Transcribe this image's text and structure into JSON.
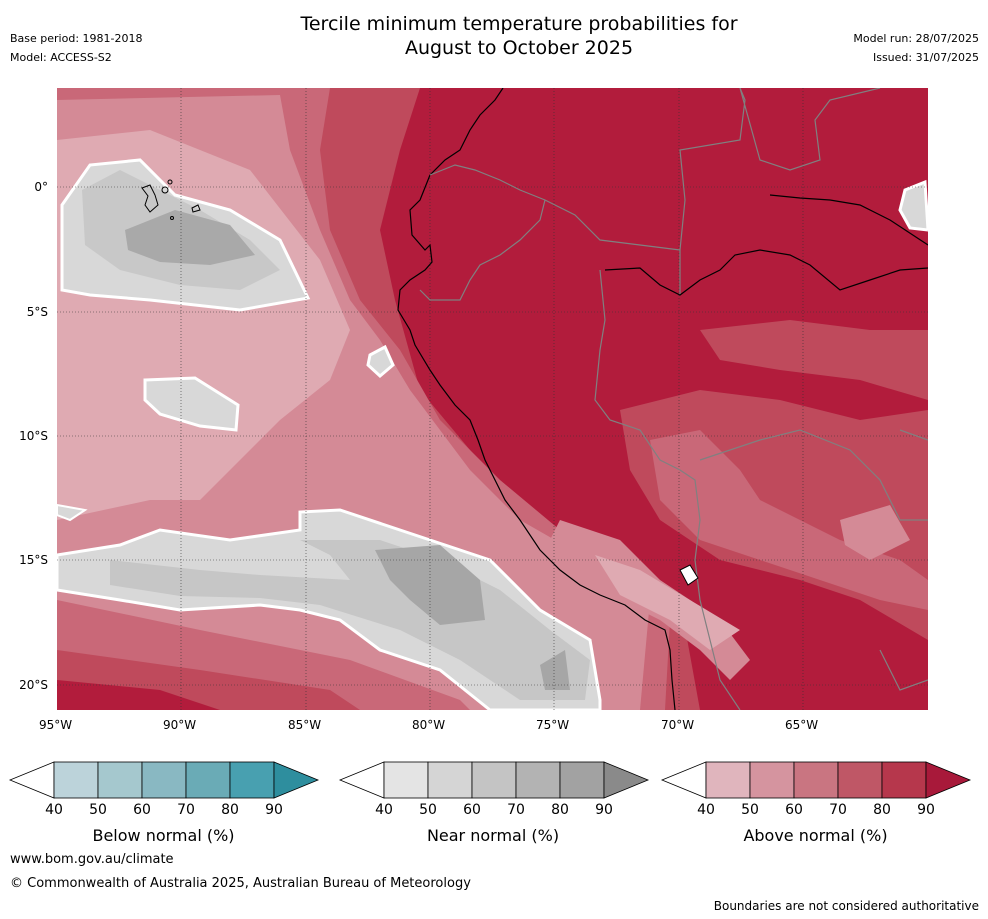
{
  "header": {
    "title_line1": "Tercile minimum temperature probabilities for",
    "title_line2": "August to October 2025",
    "base_period": "Base period: 1981-2018",
    "model": "Model: ACCESS-S2",
    "model_run": "Model run: 28/07/2025",
    "issued": "Issued: 31/07/2025"
  },
  "map": {
    "lat_labels": [
      "0°",
      "5°S",
      "10°S",
      "15°S",
      "20°S"
    ],
    "lon_labels": [
      "95°W",
      "90°W",
      "85°W",
      "80°W",
      "75°W",
      "70°W",
      "65°W"
    ]
  },
  "colorbars": [
    {
      "label": "Below normal (%)",
      "ticks": [
        "40",
        "50",
        "60",
        "70",
        "80",
        "90"
      ],
      "colors": [
        "#bcd3da",
        "#a5c8ce",
        "#89b8c2",
        "#6aabb6",
        "#48a0b0",
        "#2e8e9e"
      ]
    },
    {
      "label": "Near normal (%)",
      "ticks": [
        "40",
        "50",
        "60",
        "70",
        "80",
        "90"
      ],
      "colors": [
        "#e4e4e4",
        "#d5d5d5",
        "#c4c4c4",
        "#b3b3b3",
        "#a2a2a2",
        "#8a8a8a"
      ]
    },
    {
      "label": "Above normal (%)",
      "ticks": [
        "40",
        "50",
        "60",
        "70",
        "80",
        "90"
      ],
      "colors": [
        "#e0b5bd",
        "#d5949f",
        "#c97581",
        "#bf5766",
        "#b6374c",
        "#a8193a"
      ]
    }
  ],
  "footer": {
    "website": "www.bom.gov.au/climate",
    "copyright": "© Commonwealth of Australia 2025, Australian Bureau of Meteorology",
    "disclaimer": "Boundaries are not considered authoritative"
  }
}
